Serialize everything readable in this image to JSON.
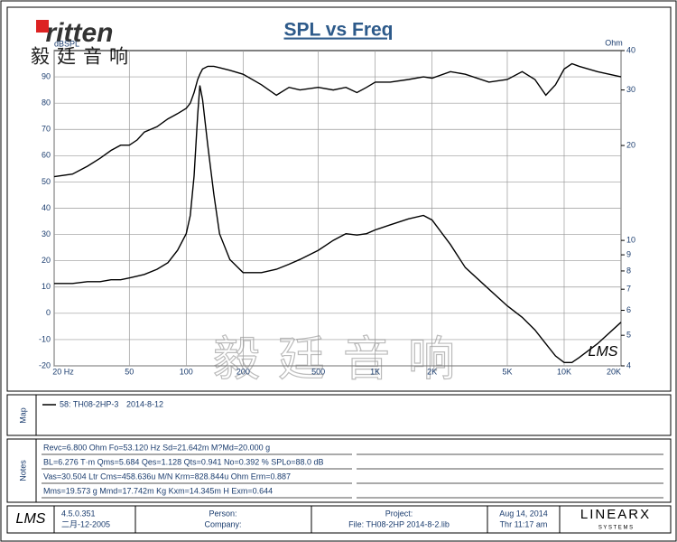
{
  "brand": {
    "logo": "ritten",
    "chinese": "毅廷音响",
    "watermark": "毅廷音响",
    "lms_mark": "LMS"
  },
  "chart_data": {
    "type": "line",
    "title": "SPL vs Freq",
    "y_label": "dBSPL",
    "y2_label": "Ohm",
    "x": [
      20,
      25,
      30,
      35,
      40,
      45,
      50,
      55,
      60,
      70,
      80,
      90,
      100,
      105,
      110,
      115,
      118,
      122,
      130,
      140,
      150,
      170,
      200,
      250,
      300,
      350,
      400,
      500,
      600,
      700,
      800,
      900,
      1000,
      1200,
      1500,
      1800,
      2000,
      2500,
      3000,
      4000,
      5000,
      6000,
      7000,
      8000,
      9000,
      10000,
      11000,
      12000,
      15000,
      20000
    ],
    "series": [
      {
        "color": "#000000",
        "values": [
          52,
          53,
          56,
          59,
          62,
          64,
          64,
          66,
          69,
          71,
          74,
          76,
          78,
          80,
          84,
          89,
          91,
          93,
          94,
          94,
          93.5,
          92.5,
          91,
          87,
          83,
          86,
          85,
          86,
          85,
          86,
          84,
          86,
          88,
          88,
          89,
          90,
          89.5,
          92,
          91,
          88,
          89,
          92,
          89,
          83,
          87,
          93,
          95,
          94,
          92,
          90
        ]
      },
      {
        "color": "#000000",
        "axis": "y2",
        "values": [
          7.3,
          7.3,
          7.4,
          7.4,
          7.5,
          7.5,
          7.6,
          7.7,
          7.8,
          8.1,
          8.5,
          9.3,
          10.5,
          12,
          16,
          25,
          31,
          28,
          20,
          14,
          10.5,
          8.7,
          7.9,
          7.9,
          8.1,
          8.4,
          8.7,
          9.3,
          10,
          10.5,
          10.4,
          10.5,
          10.8,
          11.2,
          11.7,
          12,
          11.6,
          9.7,
          8.2,
          7,
          6.2,
          5.7,
          5.2,
          4.7,
          4.3,
          4.1,
          4.1,
          4.25,
          4.7,
          5.5
        ]
      }
    ],
    "x_log": true,
    "xlim": [
      20,
      20000
    ],
    "xticks": [
      {
        "value": 20,
        "label": "20 Hz"
      },
      50,
      100,
      200,
      500,
      {
        "value": 1000,
        "label": "1K"
      },
      {
        "value": 2000,
        "label": "2K"
      },
      {
        "value": 5000,
        "label": "5K"
      },
      {
        "value": 10000,
        "label": "10K"
      },
      {
        "value": 20000,
        "label": "20K"
      }
    ],
    "ylim": [
      -20,
      100
    ],
    "yticks": [
      -20,
      -10,
      0,
      10,
      20,
      30,
      40,
      50,
      60,
      70,
      80,
      90
    ],
    "y2_log": true,
    "y2lim": [
      4,
      40
    ],
    "y2ticks": [
      4,
      5,
      6,
      7,
      8,
      9,
      10,
      20,
      30,
      40
    ],
    "grid": true
  },
  "map": {
    "label": "Map",
    "entry": "58: TH08-2HP-3",
    "date": "2014-8-12"
  },
  "notes": {
    "label": "Notes",
    "lines": [
      "Revc=6.800 Ohm  Fo=53.120 Hz  Sd=21.642m M?Md=20.000 g",
      "BL=6.276 T·m  Qms=5.684  Qes=1.128  Qts=0.941  No=0.392 %  SPLo=88.0 dB",
      "Vas=30.504 Ltr  Cms=458.636u M/N  Krm=828.844u Ohm  Erm=0.887",
      "Mms=19.573 g  Mmd=17.742m Kg  Kxm=14.345m H  Exm=0.644"
    ]
  },
  "footer": {
    "logo": "LMS",
    "version": "4.5.0.351",
    "build_date": "二月-12-2005",
    "person": "Person:",
    "company": "Company:",
    "project": "Project:",
    "file": "File: TH08-2HP   2014-8-2.lib",
    "date": "Aug 14, 2014",
    "time": "Thr 11:17 am",
    "brand": "LINEARX",
    "brand_sub": "S Y S T E M S"
  }
}
